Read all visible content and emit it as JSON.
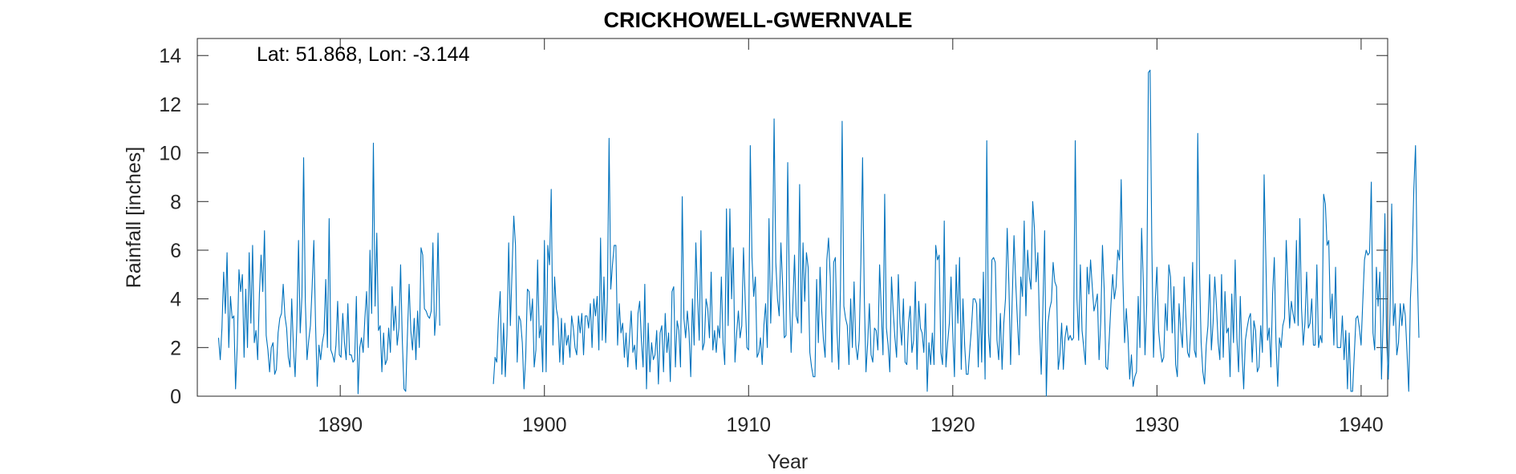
{
  "chart_data": {
    "type": "line",
    "title": "CRICKHOWELL-GWERNVALE",
    "xlabel": "Year",
    "ylabel": "Rainfall [inches]",
    "annotation": "Lat: 51.868, Lon: -3.144",
    "xlim": [
      1883,
      1941.3
    ],
    "ylim": [
      0,
      14.7
    ],
    "x_ticks": [
      1890,
      1900,
      1910,
      1920,
      1930,
      1940
    ],
    "y_ticks": [
      0,
      2,
      4,
      6,
      8,
      10,
      12,
      14
    ],
    "grid": false,
    "line_color": "#0072BD",
    "series": [
      {
        "segments": [
          {
            "x_start": 1884.04,
            "x_step": 0.08333,
            "values": [
              2.4,
              1.5,
              2.8,
              5.1,
              3.4,
              5.9,
              2.0,
              4.1,
              3.2,
              3.3,
              0.3,
              2.1,
              5.2,
              4.3,
              5.0,
              1.6,
              4.4,
              2.0,
              5.9,
              3.0,
              6.2,
              2.2,
              2.7,
              1.5,
              4.2,
              5.8,
              4.3,
              6.8,
              2.5,
              1.9,
              1.0,
              2.0,
              2.2,
              0.9,
              1.1,
              2.6,
              3.2,
              3.4,
              4.6,
              3.3,
              2.8,
              1.6,
              1.2,
              4.0,
              2.0,
              0.8,
              2.9,
              6.4,
              2.6,
              4.1,
              9.8,
              3.9,
              1.5,
              2.3,
              2.9,
              4.5,
              6.4,
              3.0,
              0.4,
              2.1,
              1.5,
              2.2,
              2.6,
              4.8,
              2.0,
              7.3,
              1.9,
              1.7,
              1.4,
              2.1,
              3.9,
              1.7,
              1.6,
              3.4,
              2.2,
              1.5,
              3.8,
              1.7,
              1.7,
              1.4,
              1.5,
              4.1,
              0.1,
              2.0,
              2.4,
              1.8,
              3.2,
              4.3,
              2.0,
              6.0,
              3.4,
              10.4,
              3.7,
              6.7,
              2.7,
              2.9,
              1.0,
              2.6,
              1.3,
              1.5,
              2.8,
              1.8,
              4.5,
              2.7,
              3.7,
              2.1,
              2.8,
              5.4,
              2.3,
              0.3,
              0.2,
              2.5,
              4.6,
              2.7,
              1.9,
              3.2,
              1.5,
              3.5,
              2.0,
              6.1,
              5.8,
              3.6,
              3.5,
              3.3,
              3.2,
              3.5,
              6.3,
              2.5,
              3.5,
              6.7,
              2.9
            ]
          },
          {
            "x_start": 1897.5,
            "x_step": 0.08333,
            "values": [
              0.5,
              1.6,
              1.4,
              3.2,
              4.3,
              0.9,
              3.0,
              0.8,
              2.5,
              6.3,
              2.9,
              5.2,
              7.4,
              6.2,
              1.4,
              3.3,
              3.1,
              2.2,
              0.3,
              1.6,
              4.4,
              4.3,
              3.1,
              4.0,
              1.2,
              1.9,
              5.6,
              2.4,
              2.9,
              1.0,
              6.4,
              1.0,
              6.2,
              5.4,
              8.5,
              2.1,
              4.9,
              3.6,
              3.2,
              1.4,
              3.2,
              1.3,
              3.0,
              2.1,
              2.5,
              1.6,
              3.3,
              2.8,
              2.0,
              1.7,
              3.3,
              2.6,
              3.4,
              1.7,
              3.3,
              3.3,
              2.8,
              3.8,
              2.0,
              4.0,
              3.3,
              4.1,
              1.9,
              6.5,
              2.3,
              4.9,
              2.2,
              4.0,
              10.6,
              4.4,
              5.4,
              6.2,
              6.2,
              2.1,
              3.8,
              2.6,
              3.0,
              1.6,
              2.6,
              1.2,
              2.4,
              3.5,
              1.8,
              2.1,
              1.1,
              3.4,
              3.9,
              2.3,
              1.2,
              4.6,
              0.3,
              3.0,
              1.0,
              2.2,
              1.5,
              1.7,
              2.7,
              0.5,
              2.6,
              2.9,
              1.0,
              3.4,
              1.8,
              2.6,
              0.6,
              4.3,
              4.5,
              1.2,
              3.1,
              2.7,
              1.2,
              8.2,
              3.2,
              2.4,
              3.5,
              2.6,
              0.8,
              4.0,
              2.1,
              6.3,
              4.1,
              2.3,
              6.8,
              1.9,
              2.2,
              4.0,
              3.6,
              2.4,
              5.1,
              1.9,
              2.7,
              1.8,
              2.9,
              2.4,
              4.9,
              2.2,
              1.3,
              7.7,
              2.9,
              7.7,
              4.0,
              6.1,
              1.4,
              2.6,
              3.5,
              2.4,
              2.9,
              6.1,
              4.0,
              2.0,
              1.9,
              10.3,
              5.7,
              4.1,
              4.9,
              1.6,
              1.8,
              2.4,
              1.3,
              2.9,
              3.8,
              2.0,
              7.3,
              3.0,
              5.2,
              11.4,
              5.5,
              4.0,
              3.3,
              6.3,
              4.6,
              2.4,
              2.5,
              9.6,
              4.2,
              1.8,
              3.7,
              5.8,
              3.3,
              3.0,
              8.7,
              2.6,
              6.3,
              3.9,
              5.9,
              5.3,
              1.8,
              1.2,
              0.8,
              0.8,
              4.8,
              2.2,
              5.3,
              3.5,
              2.3,
              1.6,
              5.6,
              6.5,
              4.9,
              1.4,
              5.5,
              5.7,
              2.6,
              1.1,
              4.4,
              11.3,
              3.7,
              3.2,
              2.9,
              1.3,
              4.0,
              2.0,
              4.7,
              2.1,
              1.5,
              2.3,
              5.5,
              9.8,
              4.1,
              1.0,
              2.2,
              3.8,
              1.7,
              1.4,
              2.8,
              2.7,
              1.9,
              5.4,
              3.5,
              1.7,
              8.3,
              2.8,
              2.1,
              1.0,
              4.9,
              3.5,
              2.4,
              1.6,
              5.0,
              3.0,
              2.1,
              4.0,
              1.4,
              1.3,
              3.0,
              3.7,
              1.8,
              2.3,
              4.7,
              1.1,
              3.9,
              2.8,
              2.6,
              1.8,
              3.8,
              0.2,
              2.2,
              1.3,
              2.6,
              1.3,
              6.2,
              5.6,
              5.8,
              1.8,
              1.3,
              7.2,
              1.2,
              2.2,
              3.0,
              4.9,
              2.6,
              0.8,
              5.4,
              3.0,
              5.7,
              1.1,
              4.0,
              2.1,
              0.9,
              0.9,
              1.9,
              2.8,
              4.0,
              4.0,
              3.8,
              1.2,
              4.0,
              1.4,
              5.1,
              0.7,
              10.5,
              2.6,
              1.6,
              5.6,
              5.7,
              5.5,
              2.3,
              1.5,
              3.4,
              1.1,
              3.0,
              4.0,
              6.9,
              4.6,
              1.3,
              4.1,
              6.6,
              4.7,
              3.1,
              1.7,
              4.9,
              4.1,
              7.2,
              3.3,
              6.0,
              4.9,
              4.4,
              8.0,
              6.9,
              4.7,
              5.9,
              2.9,
              0.9,
              3.7,
              6.8,
              0.0,
              3.0,
              3.6,
              3.9,
              5.5,
              4.7,
              4.5,
              1.1,
              1.7,
              3.0,
              1.1,
              2.4,
              2.9,
              2.3,
              2.5,
              2.3,
              2.4,
              10.5,
              4.0,
              2.3,
              5.4,
              2.7,
              2.0,
              1.3,
              5.3,
              4.2,
              5.6,
              4.5,
              3.5,
              3.8,
              4.2,
              1.5,
              3.1,
              6.2,
              4.4,
              1.2,
              1.1,
              2.4,
              3.8,
              5.0,
              4.0,
              4.5,
              6.0,
              5.6,
              8.9,
              4.8,
              2.2,
              3.6,
              2.4,
              0.7,
              1.7,
              0.4,
              0.8,
              1.0,
              4.1,
              2.0,
              6.9,
              4.7,
              1.7,
              3.8,
              13.3,
              13.4,
              6.2,
              1.6,
              3.9,
              5.3,
              2.7,
              1.9,
              1.4,
              1.6,
              3.8,
              2.7,
              5.4,
              4.9,
              2.6,
              4.5,
              1.3,
              0.8,
              3.8,
              2.7,
              2.0,
              4.9,
              3.3,
              1.8,
              1.6,
              2.9,
              5.5,
              1.9,
              1.6,
              10.8,
              5.2,
              2.2,
              1.0,
              0.5,
              2.1,
              2.9,
              5.0,
              1.9,
              3.0,
              4.9,
              3.7,
              2.2,
              1.5,
              5.0,
              1.6,
              4.3,
              2.6,
              2.8,
              0.8,
              4.2,
              2.2,
              5.6,
              2.4,
              1.0,
              4.1,
              1.8,
              0.3,
              2.3,
              2.8,
              3.2,
              3.4,
              1.4,
              3.1,
              2.7,
              1.0,
              1.2,
              2.9,
              1.8,
              9.1,
              5.7,
              2.3,
              2.8,
              1.2,
              4.2,
              5.7,
              2.2,
              0.4,
              2.4,
              2.0,
              2.9,
              3.2,
              6.4,
              4.5,
              2.8,
              3.9,
              3.4,
              3.0,
              6.4,
              2.9,
              7.3,
              3.6,
              2.1,
              3.0,
              5.1,
              2.8,
              3.0,
              4.0,
              2.1,
              2.1,
              5.4,
              2.0,
              2.5,
              2.2,
              8.3,
              7.9,
              6.2,
              6.4,
              3.2,
              4.2,
              2.1,
              5.3,
              2.0,
              2.0,
              2.0,
              3.3,
              1.5,
              2.7,
              0.3,
              2.6,
              0.2,
              0.2,
              1.7,
              3.2,
              3.3,
              2.8,
              2.1,
              3.9,
              5.6,
              6.0,
              5.8,
              5.9,
              8.8,
              2.6,
              1.9,
              5.3,
              3.7,
              5.1,
              0.7,
              3.3,
              7.5,
              2.4,
              0.7,
              3.4,
              7.9,
              2.9,
              3.8,
              1.7,
              2.2,
              3.8,
              2.9,
              3.8,
              3.3,
              1.8,
              0.2,
              4.0,
              5.6,
              8.5,
              10.3,
              5.3,
              2.4
            ]
          }
        ]
      }
    ]
  }
}
